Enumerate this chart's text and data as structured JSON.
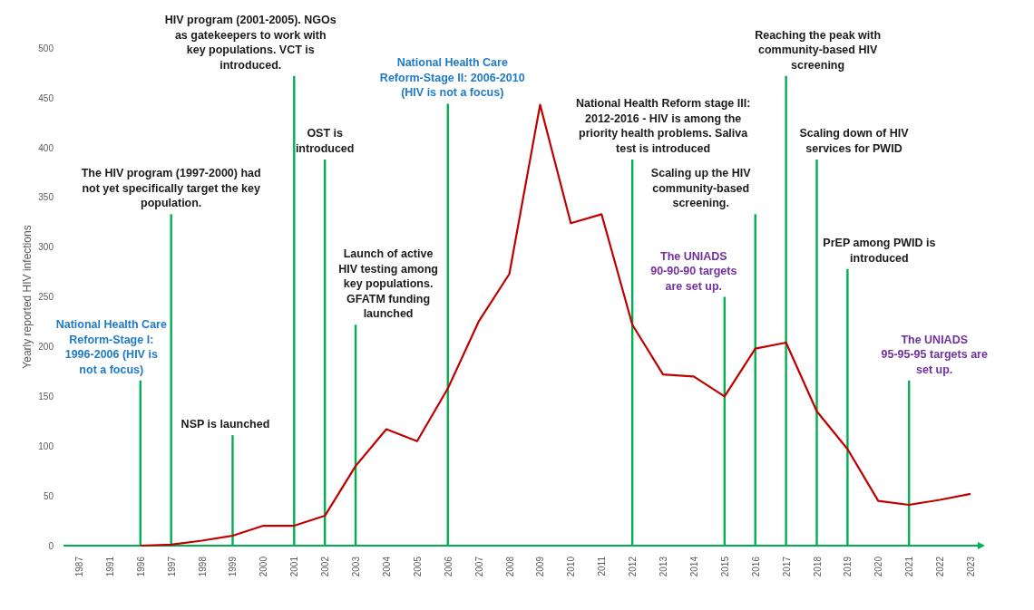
{
  "chart_data": {
    "type": "line",
    "ylabel": "Yearly reported HIV infections",
    "categories": [
      "1987",
      "1991",
      "1996",
      "1997",
      "1998",
      "1999",
      "2000",
      "2001",
      "2002",
      "2003",
      "2004",
      "2005",
      "2006",
      "2007",
      "2008",
      "2009",
      "2010",
      "2011",
      "2012",
      "2013",
      "2014",
      "2015",
      "2016",
      "2017",
      "2018",
      "2019",
      "2020",
      "2021",
      "2022",
      "2023"
    ],
    "series": [
      {
        "type": "bar",
        "color": "#00b050",
        "values": [
          null,
          null,
          166,
          333,
          null,
          111,
          null,
          472,
          388,
          222,
          null,
          null,
          444,
          null,
          null,
          null,
          null,
          null,
          388,
          null,
          null,
          250,
          333,
          472,
          388,
          278,
          null,
          166,
          null,
          null
        ]
      },
      {
        "color": "#c00000",
        "values": [
          null,
          null,
          0,
          1,
          5,
          10,
          20,
          20,
          30,
          80,
          117,
          105,
          158,
          225,
          273,
          443,
          324,
          333,
          222,
          172,
          170,
          150,
          198,
          204,
          135,
          97,
          45,
          41,
          46,
          52
        ]
      }
    ],
    "ylim": [
      0,
      500
    ],
    "yticks": [
      0,
      50,
      100,
      150,
      200,
      250,
      300,
      350,
      400,
      450,
      500
    ],
    "marker": "none",
    "line_style": "solid",
    "annotations": [
      "National Health Care Reform-Stage I: 1996-2006 (HIV is not a focus)",
      "The HIV program (1997-2000) had not yet specifically target the key population.",
      "NSP is launched",
      "HIV program (2001-2005). NGOs as gatekeepers to work with key populations. VCT is introduced.",
      "OST is introduced",
      "Launch of active HIV testing among key populations. GFATM funding launched",
      "National Health Care Reform-Stage II: 2006-2010 (HIV is not a focus)",
      "National Health Reform stage III: 2012-2016 - HIV is among the priority health problems. Saliva test is introduced",
      "The UNIADS 90-90-90 targets are set up.",
      "Scaling up the HIV community-based screening.",
      "Reaching the peak with community-based HIV screening",
      "Scaling down of HIV services for PWID",
      "PrEP among PWID is introduced",
      "The UNIADS 95-95-95 targets are set up."
    ]
  }
}
